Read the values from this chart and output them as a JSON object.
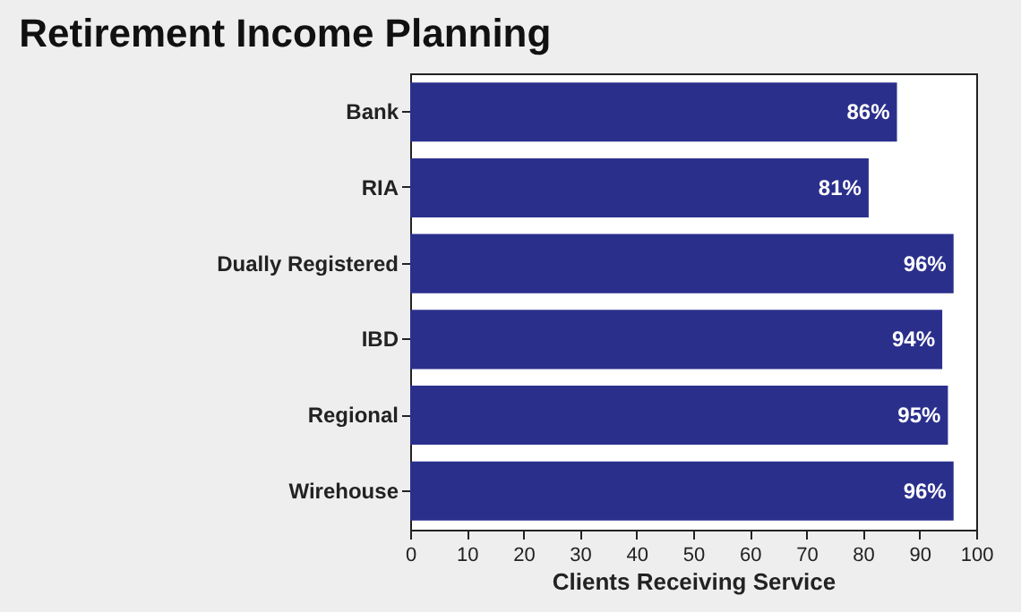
{
  "chart_data": {
    "type": "bar",
    "orientation": "horizontal",
    "title": "Retirement Income Planning",
    "xlabel": "Clients Receiving Service",
    "categories": [
      "Bank",
      "RIA",
      "Dually Registered",
      "IBD",
      "Regional",
      "Wirehouse"
    ],
    "values": [
      86,
      81,
      96,
      94,
      95,
      96
    ],
    "value_labels": [
      "86%",
      "81%",
      "96%",
      "94%",
      "95%",
      "96%"
    ],
    "color": "#2b2f8c",
    "xlim": [
      0,
      100
    ],
    "xticks": [
      0,
      10,
      20,
      30,
      40,
      50,
      60,
      70,
      80,
      90,
      100
    ],
    "grid": false
  }
}
